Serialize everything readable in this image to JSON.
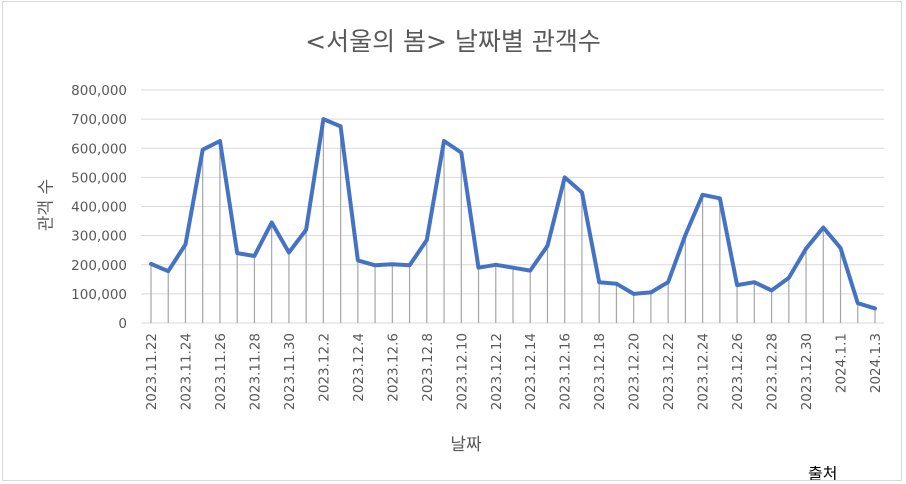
{
  "chart_data": {
    "type": "line",
    "title": "<서울의 봄> 날짜별 관객수",
    "xlabel": "날짜",
    "ylabel": "관객 수",
    "ylim": [
      0,
      800000
    ],
    "yticks": [
      "0",
      "100,000",
      "200,000",
      "300,000",
      "400,000",
      "500,000",
      "600,000",
      "700,000",
      "800,000"
    ],
    "grid": true,
    "drop_lines": true,
    "line_color": "#4472c4",
    "categories": [
      "2023.11.22",
      "2023.11.23",
      "2023.11.24",
      "2023.11.25",
      "2023.11.26",
      "2023.11.27",
      "2023.11.28",
      "2023.11.29",
      "2023.11.30",
      "2023.12.1",
      "2023.12.2",
      "2023.12.3",
      "2023.12.4",
      "2023.12.5",
      "2023.12.6",
      "2023.12.7",
      "2023.12.8",
      "2023.12.9",
      "2023.12.10",
      "2023.12.11",
      "2023.12.12",
      "2023.12.13",
      "2023.12.14",
      "2023.12.15",
      "2023.12.16",
      "2023.12.17",
      "2023.12.18",
      "2023.12.19",
      "2023.12.20",
      "2023.12.21",
      "2023.12.22",
      "2023.12.23",
      "2023.12.24",
      "2023.12.25",
      "2023.12.26",
      "2023.12.27",
      "2023.12.28",
      "2023.12.29",
      "2023.12.30",
      "2023.12.31",
      "2024.1.1",
      "2024.1.2",
      "2024.1.3"
    ],
    "x_tick_labels": [
      "2023.11.22",
      "2023.11.24",
      "2023.11.26",
      "2023.11.28",
      "2023.11.30",
      "2023.12.2",
      "2023.12.4",
      "2023.12.6",
      "2023.12.8",
      "2023.12.10",
      "2023.12.12",
      "2023.12.14",
      "2023.12.16",
      "2023.12.18",
      "2023.12.20",
      "2023.12.22",
      "2023.12.24",
      "2023.12.26",
      "2023.12.28",
      "2023.12.30",
      "2024.1.1",
      "2024.1.3"
    ],
    "values": [
      203000,
      178000,
      270000,
      595000,
      625000,
      240000,
      230000,
      345000,
      242000,
      320000,
      700000,
      675000,
      215000,
      198000,
      202000,
      198000,
      285000,
      625000,
      585000,
      190000,
      200000,
      190000,
      180000,
      265000,
      500000,
      448000,
      140000,
      135000,
      100000,
      105000,
      140000,
      302000,
      440000,
      428000,
      130000,
      140000,
      112000,
      155000,
      255000,
      328000,
      258000,
      68000,
      50000
    ]
  },
  "footer": {
    "source_label": "출처"
  }
}
